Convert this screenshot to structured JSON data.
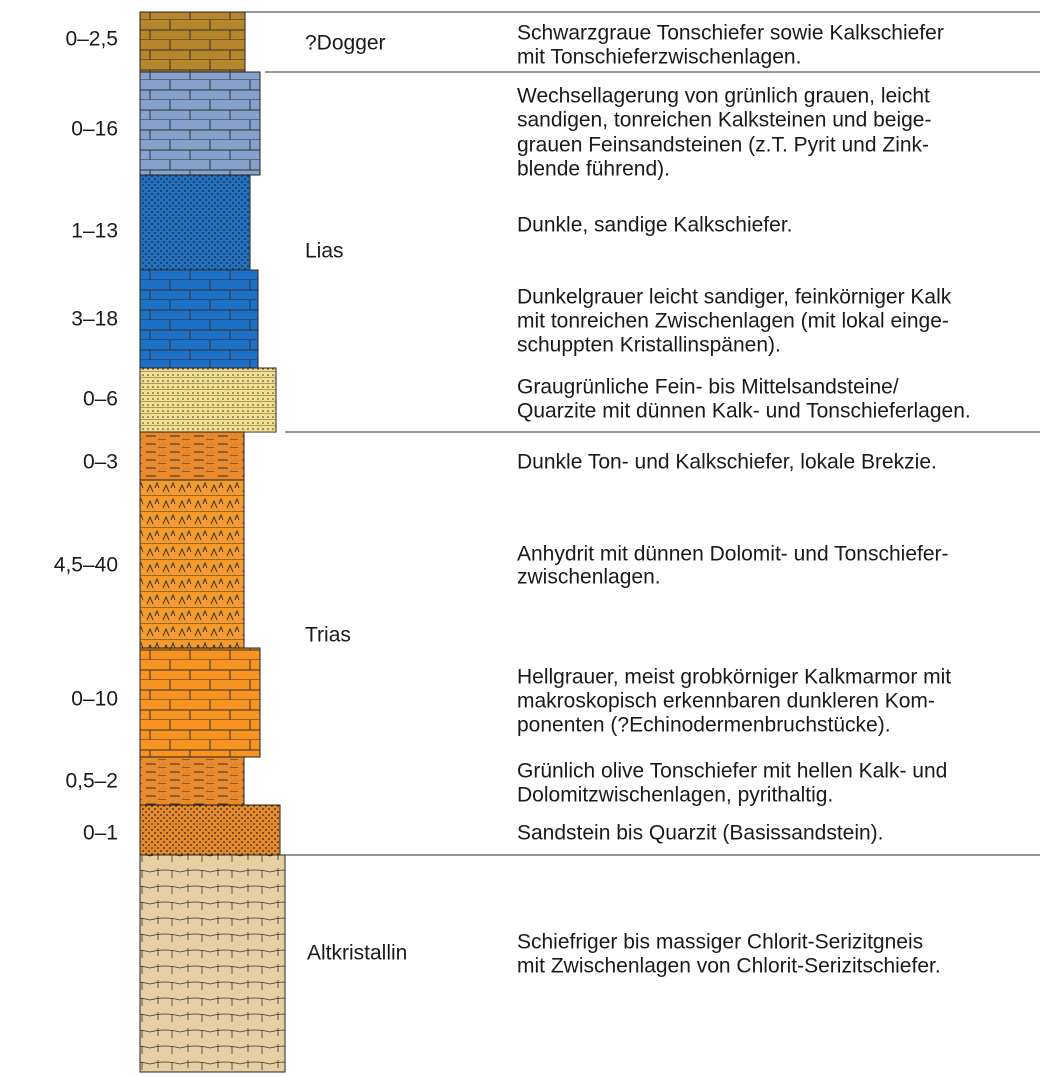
{
  "layers": [
    {
      "thickness": "0–2,5",
      "description": [
        "Schwarzgraue Tonschiefer sowie Kalkschiefer",
        "mit Tonschieferzwischenlagen."
      ]
    },
    {
      "thickness": "0–16",
      "description": [
        "Wechsellagerung von grünlich grauen, leicht",
        "sandigen, tonreichen Kalksteinen und beige-",
        "grauen Feinsandsteinen (z.T. Pyrit und Zink-",
        "blende führend)."
      ]
    },
    {
      "thickness": "1–13",
      "description": [
        "Dunkle, sandige Kalkschiefer."
      ]
    },
    {
      "thickness": "3–18",
      "description": [
        "Dunkelgrauer leicht sandiger, feinkörniger Kalk",
        "mit tonreichen Zwischenlagen (mit lokal einge-",
        "schuppten Kristallinspänen)."
      ]
    },
    {
      "thickness": "0–6",
      "description": [
        "Graugrünliche Fein- bis Mittelsandsteine/",
        "Quarzite mit dünnen Kalk- und Tonschieferlagen."
      ]
    },
    {
      "thickness": "0–3",
      "description": [
        "Dunkle Ton- und Kalkschiefer, lokale Brekzie."
      ]
    },
    {
      "thickness": "4,5–40",
      "description": [
        "Anhydrit mit dünnen Dolomit- und Tonschiefer-",
        "zwischenlagen."
      ]
    },
    {
      "thickness": "0–10",
      "description": [
        "Hellgrauer, meist grobkörniger Kalkmarmor mit",
        "makroskopisch erkennbaren dunkleren Kom-",
        "ponenten (?Echinodermenbruchstücke)."
      ]
    },
    {
      "thickness": "0,5–2",
      "description": [
        "Grünlich olive Tonschiefer mit hellen Kalk- und",
        "Dolomitzwischenlagen, pyrithaltig."
      ]
    },
    {
      "thickness": "0–1",
      "description": [
        "Sandstein bis Quarzit (Basissandstein)."
      ]
    },
    {
      "description": [
        "Schiefriger bis massiger Chlorit-Serizitgneis",
        "mit Zwischenlagen von Chlorit-Serizitschiefer."
      ]
    }
  ],
  "units": [
    {
      "name": "?Dogger"
    },
    {
      "name": "Lias"
    },
    {
      "name": "Trias"
    },
    {
      "name": "Altkristallin"
    }
  ]
}
